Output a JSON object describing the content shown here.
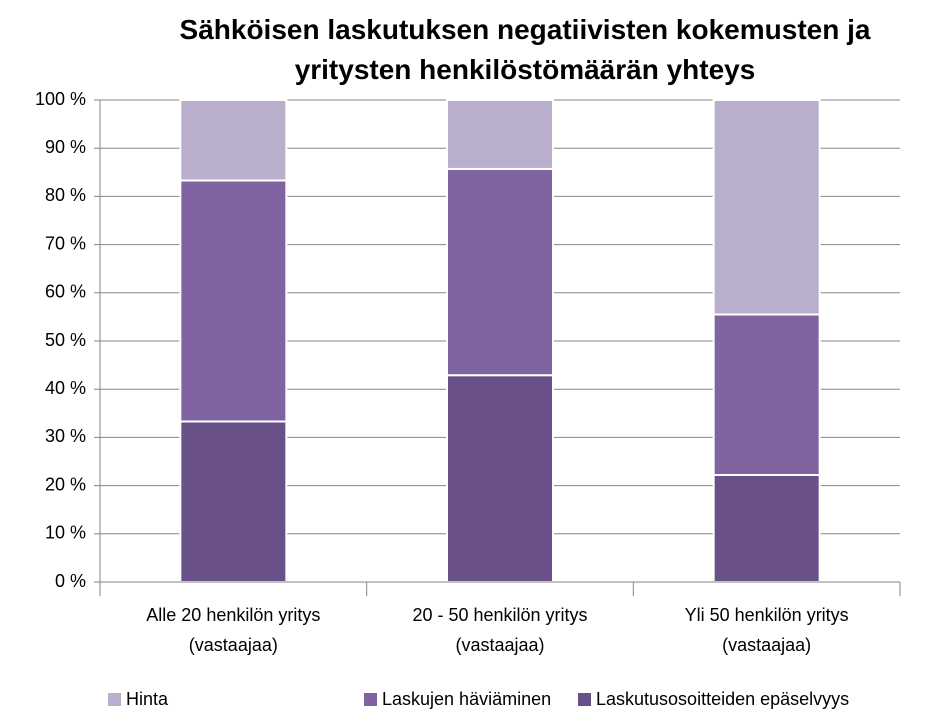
{
  "chart_data": {
    "type": "stacked_bar",
    "title": "Sähköisen laskutuksen negatiivisten kokemusten ja\nyritysten henkilöstömäärän yhteys",
    "categories": [
      "Alle 20 henkilön yritys\n(vastaajaa)",
      "20 - 50 henkilön yritys\n(vastaajaa)",
      "Yli 50 henkilön yritys\n(vastaajaa)"
    ],
    "series": [
      {
        "name": "Laskutusosoitteiden epäselvyys",
        "color": "#6a5088",
        "values": [
          33.3,
          42.9,
          22.2
        ]
      },
      {
        "name": "Laskujen häviäminen",
        "color": "#8064a2",
        "values": [
          50,
          42.8,
          33.3
        ]
      },
      {
        "name": "Hinta",
        "color": "#b9aecb",
        "values": [
          16.7,
          14.3,
          44.5
        ]
      }
    ],
    "legend_order": [
      "Hinta",
      "Laskujen häviäminen",
      "Laskutusosoitteiden epäselvyys"
    ],
    "ylim": [
      0,
      100
    ],
    "yticks": [
      {
        "value": 0,
        "label": "0 %"
      },
      {
        "value": 10,
        "label": "10 %"
      },
      {
        "value": 20,
        "label": "20 %"
      },
      {
        "value": 30,
        "label": "30 %"
      },
      {
        "value": 40,
        "label": "40 %"
      },
      {
        "value": 50,
        "label": "50 %"
      },
      {
        "value": 60,
        "label": "60 %"
      },
      {
        "value": 70,
        "label": "70 %"
      },
      {
        "value": 80,
        "label": "80 %"
      },
      {
        "value": 90,
        "label": "90 %"
      },
      {
        "value": 100,
        "label": "100 %"
      }
    ],
    "grid": true,
    "legend": "bottom"
  }
}
